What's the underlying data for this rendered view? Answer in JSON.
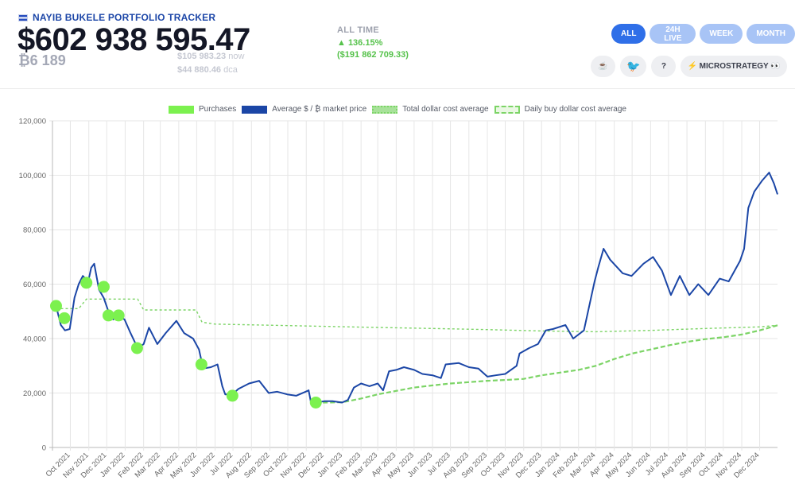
{
  "header": {
    "app_title": "NAYIB BUKELE PORTFOLIO TRACKER",
    "total_value": "$602 938 595.47",
    "btc_holdings": "₿6 189",
    "price_now": "$105 983.23",
    "price_now_suffix": "now",
    "price_dca": "$44 880.46",
    "price_dca_suffix": "dca",
    "alltime_label": "ALL TIME",
    "alltime_pct": "▲ 136.15%",
    "alltime_usd": "($191 862 709.33)"
  },
  "range_tabs": [
    {
      "label": "ALL",
      "active": true
    },
    {
      "label": "24H LIVE",
      "active": false
    },
    {
      "label": "WEEK",
      "active": false
    },
    {
      "label": "MONTH",
      "active": false
    }
  ],
  "tools": {
    "coffee": "☕",
    "twitter": "🐦",
    "help": "?",
    "microstrategy": "⚡ MICROSTRATEGY 👀"
  },
  "colors": {
    "market": "#1b46a6",
    "purchase": "#7cf14f",
    "total_dca": "#7cd466",
    "daily_dca": "#7cd466",
    "accent": "#2f6fe8"
  },
  "chart_data": {
    "type": "line",
    "legend": [
      "Purchases",
      "Average $ / ₿ market price",
      "Total dollar cost average",
      "Daily buy dollar cost average"
    ],
    "legend_position": "top-center",
    "grid": true,
    "ylim": [
      0,
      120000
    ],
    "y_ticks": [
      "0",
      "20,000",
      "40,000",
      "60,000",
      "80,000",
      "100,000",
      "120,000"
    ],
    "xlim": [
      "2021-09-01",
      "2024-12-31"
    ],
    "x_tick_labels": [
      "Oct 2021",
      "Nov 2021",
      "Dec 2021",
      "Jan 2022",
      "Feb 2022",
      "Mar 2022",
      "Apr 2022",
      "May 2022",
      "Jun 2022",
      "Jul 2022",
      "Aug 2022",
      "Sep 2022",
      "Oct 2022",
      "Nov 2022",
      "Dec 2022",
      "Jan 2023",
      "Feb 2023",
      "Mar 2023",
      "Apr 2023",
      "May 2023",
      "Jun 2023",
      "Jul 2023",
      "Aug 2023",
      "Sep 2023",
      "Oct 2023",
      "Nov 2023",
      "Dec 2023",
      "Jan 2024",
      "Feb 2024",
      "Mar 2024",
      "Apr 2024",
      "May 2024",
      "Jun 2024",
      "Jul 2024",
      "Aug 2024",
      "Sep 2024",
      "Oct 2024",
      "Nov 2024",
      "Dec 2024"
    ],
    "x_tick_dates": [
      "2021-10-01",
      "2021-11-01",
      "2021-12-01",
      "2022-01-01",
      "2022-02-01",
      "2022-03-01",
      "2022-04-01",
      "2022-05-01",
      "2022-06-01",
      "2022-07-01",
      "2022-08-01",
      "2022-09-01",
      "2022-10-01",
      "2022-11-01",
      "2022-12-01",
      "2023-01-01",
      "2023-02-01",
      "2023-03-01",
      "2023-04-01",
      "2023-05-01",
      "2023-06-01",
      "2023-07-01",
      "2023-08-01",
      "2023-09-01",
      "2023-10-01",
      "2023-11-01",
      "2023-12-01",
      "2024-01-01",
      "2024-02-01",
      "2024-03-01",
      "2024-04-01",
      "2024-05-01",
      "2024-06-01",
      "2024-07-01",
      "2024-08-01",
      "2024-09-01",
      "2024-10-01",
      "2024-11-01",
      "2024-12-01"
    ],
    "series": [
      {
        "name": "Average $ / ₿ market price",
        "x": [
          "2021-09-07",
          "2021-09-15",
          "2021-09-22",
          "2021-09-30",
          "2021-10-08",
          "2021-10-15",
          "2021-10-22",
          "2021-10-31",
          "2021-11-05",
          "2021-11-10",
          "2021-11-18",
          "2021-11-26",
          "2021-12-04",
          "2021-12-12",
          "2021-12-20",
          "2021-12-31",
          "2022-01-10",
          "2022-01-22",
          "2022-02-01",
          "2022-02-10",
          "2022-02-24",
          "2022-03-10",
          "2022-03-28",
          "2022-04-10",
          "2022-04-25",
          "2022-05-05",
          "2022-05-12",
          "2022-05-25",
          "2022-06-05",
          "2022-06-13",
          "2022-06-18",
          "2022-06-30",
          "2022-07-10",
          "2022-07-28",
          "2022-08-14",
          "2022-08-30",
          "2022-09-13",
          "2022-09-30",
          "2022-10-15",
          "2022-10-31",
          "2022-11-05",
          "2022-11-09",
          "2022-11-18",
          "2022-12-01",
          "2022-12-15",
          "2022-12-31",
          "2023-01-10",
          "2023-01-20",
          "2023-02-01",
          "2023-02-15",
          "2023-03-01",
          "2023-03-10",
          "2023-03-20",
          "2023-04-01",
          "2023-04-14",
          "2023-05-01",
          "2023-05-15",
          "2023-06-01",
          "2023-06-15",
          "2023-06-23",
          "2023-07-15",
          "2023-08-01",
          "2023-08-17",
          "2023-09-01",
          "2023-09-15",
          "2023-10-01",
          "2023-10-20",
          "2023-10-25",
          "2023-11-10",
          "2023-11-25",
          "2023-12-08",
          "2023-12-20",
          "2024-01-10",
          "2024-01-23",
          "2024-02-10",
          "2024-02-28",
          "2024-03-05",
          "2024-03-14",
          "2024-03-25",
          "2024-04-15",
          "2024-04-30",
          "2024-05-20",
          "2024-06-05",
          "2024-06-20",
          "2024-07-05",
          "2024-07-20",
          "2024-08-05",
          "2024-08-20",
          "2024-09-06",
          "2024-09-25",
          "2024-10-10",
          "2024-10-29",
          "2024-11-05",
          "2024-11-12",
          "2024-11-22",
          "2024-12-05",
          "2024-12-17",
          "2024-12-25",
          "2024-12-31"
        ],
        "values": [
          52000,
          45000,
          43000,
          43500,
          55000,
          60000,
          63000,
          61000,
          66000,
          67500,
          58000,
          55000,
          50000,
          47000,
          48500,
          47000,
          42000,
          36500,
          38000,
          44000,
          38000,
          42000,
          46500,
          42000,
          40000,
          36000,
          29000,
          29500,
          30500,
          22500,
          19500,
          19500,
          21500,
          23500,
          24500,
          20000,
          20500,
          19500,
          19000,
          20500,
          21000,
          16500,
          16500,
          17000,
          17000,
          16500,
          17500,
          22000,
          23500,
          22500,
          23500,
          21000,
          28000,
          28500,
          29500,
          28500,
          27000,
          26500,
          25500,
          30500,
          31000,
          29500,
          29000,
          26000,
          26500,
          27000,
          30000,
          34500,
          36500,
          38000,
          43000,
          43500,
          45000,
          40000,
          43000,
          61000,
          66000,
          73000,
          69000,
          64000,
          63000,
          67500,
          70000,
          65000,
          56000,
          63000,
          56000,
          60000,
          56000,
          62000,
          61000,
          68500,
          73000,
          88000,
          94000,
          98000,
          101000,
          97000,
          93000
        ]
      },
      {
        "name": "Total dollar cost average",
        "x": [
          "2022-11-17",
          "2022-12-01",
          "2022-12-31",
          "2023-01-15",
          "2023-02-01",
          "2023-03-01",
          "2023-04-01",
          "2023-05-01",
          "2023-06-01",
          "2023-07-01",
          "2023-08-01",
          "2023-09-01",
          "2023-10-01",
          "2023-11-01",
          "2023-12-01",
          "2024-01-01",
          "2024-02-01",
          "2024-03-01",
          "2024-04-01",
          "2024-05-01",
          "2024-06-01",
          "2024-07-01",
          "2024-08-01",
          "2024-09-01",
          "2024-10-01",
          "2024-11-01",
          "2024-12-01",
          "2024-12-31"
        ],
        "values": [
          16500,
          16500,
          16600,
          17200,
          18000,
          19500,
          20800,
          22000,
          22800,
          23500,
          24000,
          24500,
          24800,
          25200,
          26500,
          27500,
          28500,
          30000,
          32500,
          34500,
          36000,
          37500,
          38800,
          39800,
          40500,
          41500,
          43000,
          44880
        ]
      },
      {
        "name": "Daily buy dollar cost average",
        "x": [
          "2021-09-07",
          "2021-10-15",
          "2021-10-28",
          "2021-11-20",
          "2021-12-31",
          "2022-01-22",
          "2022-02-01",
          "2022-04-30",
          "2022-05-10",
          "2022-06-01",
          "2022-09-01",
          "2022-12-01",
          "2023-03-01",
          "2023-06-01",
          "2023-09-01",
          "2023-12-01",
          "2024-03-01",
          "2024-06-01",
          "2024-09-01",
          "2024-12-01",
          "2024-12-31"
        ],
        "values": [
          51000,
          51000,
          54500,
          54500,
          54500,
          54500,
          50500,
          50500,
          46000,
          45300,
          44900,
          44500,
          44100,
          43700,
          43300,
          42800,
          42500,
          43000,
          43700,
          44300,
          44880
        ]
      }
    ],
    "purchases": [
      {
        "x": "2021-09-07",
        "y": 52000
      },
      {
        "x": "2021-09-21",
        "y": 47500
      },
      {
        "x": "2021-10-28",
        "y": 60500
      },
      {
        "x": "2021-11-26",
        "y": 59000
      },
      {
        "x": "2021-12-04",
        "y": 48500
      },
      {
        "x": "2021-12-21",
        "y": 48500
      },
      {
        "x": "2022-01-21",
        "y": 36500
      },
      {
        "x": "2022-05-09",
        "y": 30500
      },
      {
        "x": "2022-06-30",
        "y": 19000
      },
      {
        "x": "2022-11-17",
        "y": 16500
      }
    ]
  }
}
